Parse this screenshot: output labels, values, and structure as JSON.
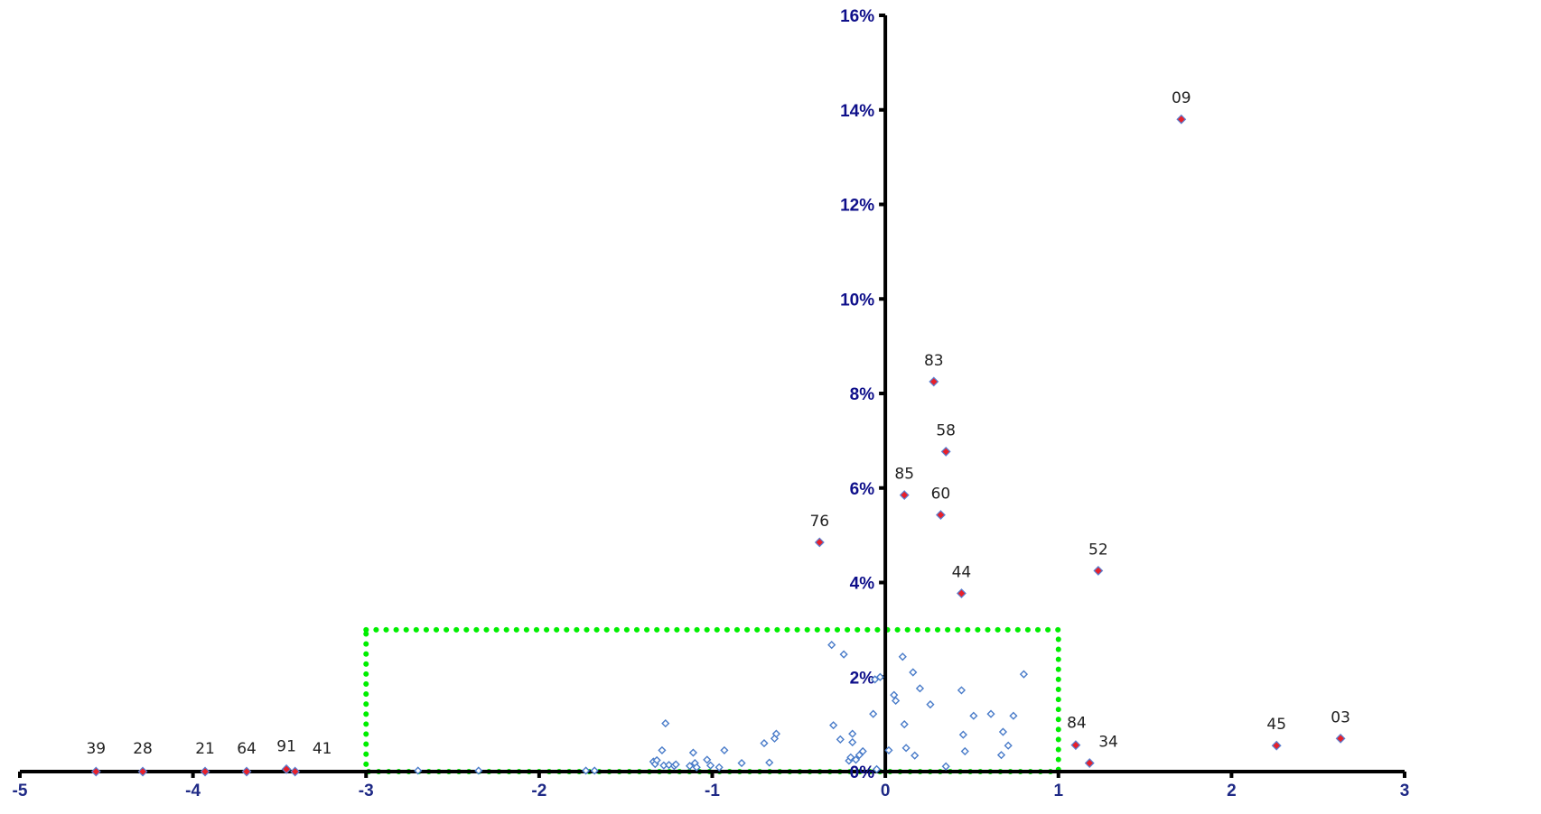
{
  "chart_data": {
    "type": "scatter",
    "xlim": [
      -5,
      3
    ],
    "ylim": [
      0,
      16
    ],
    "y_unit": "%",
    "x_ticks": [
      "-5",
      "-4",
      "-3",
      "-2",
      "-1",
      "0",
      "1",
      "2",
      "3"
    ],
    "y_ticks": [
      "0%",
      "2%",
      "4%",
      "6%",
      "8%",
      "10%",
      "12%",
      "14%",
      "16%"
    ],
    "grid": false,
    "highlight_box": {
      "x": [
        -3,
        1
      ],
      "y": [
        0,
        3
      ],
      "color": "#00ee00",
      "style": "dotted"
    },
    "colors": {
      "axis": "#000000",
      "tick_labels": "#1f2a86",
      "labeled_marker": "#e8202a",
      "labeled_marker_edge": "#5b7fd0",
      "open_marker": "#4a7cc9"
    },
    "labeled_points": [
      {
        "label": "39",
        "x": -4.56,
        "y": 0.0
      },
      {
        "label": "28",
        "x": -4.29,
        "y": 0.0
      },
      {
        "label": "21",
        "x": -3.93,
        "y": 0.0
      },
      {
        "label": "64",
        "x": -3.69,
        "y": 0.0
      },
      {
        "label": "91",
        "x": -3.46,
        "y": 0.05
      },
      {
        "label": "41",
        "x": -3.41,
        "y": 0.0
      },
      {
        "label": "76",
        "x": -0.38,
        "y": 4.85
      },
      {
        "label": "85",
        "x": 0.11,
        "y": 5.85
      },
      {
        "label": "83",
        "x": 0.28,
        "y": 8.25
      },
      {
        "label": "60",
        "x": 0.32,
        "y": 5.43
      },
      {
        "label": "58",
        "x": 0.35,
        "y": 6.77
      },
      {
        "label": "44",
        "x": 0.44,
        "y": 3.77
      },
      {
        "label": "09",
        "x": 1.71,
        "y": 13.8
      },
      {
        "label": "52",
        "x": 1.23,
        "y": 4.25
      },
      {
        "label": "84",
        "x": 1.1,
        "y": 0.56
      },
      {
        "label": "34",
        "x": 1.18,
        "y": 0.18
      },
      {
        "label": "45",
        "x": 2.26,
        "y": 0.55
      },
      {
        "label": "03",
        "x": 2.63,
        "y": 0.7
      }
    ],
    "points": [
      {
        "x": -2.7,
        "y": 0.02
      },
      {
        "x": -2.35,
        "y": 0.02
      },
      {
        "x": -1.73,
        "y": 0.02
      },
      {
        "x": -1.68,
        "y": 0.02
      },
      {
        "x": -1.34,
        "y": 0.21
      },
      {
        "x": -1.33,
        "y": 0.16
      },
      {
        "x": -1.32,
        "y": 0.24
      },
      {
        "x": -1.29,
        "y": 0.45
      },
      {
        "x": -1.27,
        "y": 1.02
      },
      {
        "x": -1.28,
        "y": 0.13
      },
      {
        "x": -1.25,
        "y": 0.14
      },
      {
        "x": -1.22,
        "y": 0.12
      },
      {
        "x": -1.21,
        "y": 0.15
      },
      {
        "x": -1.13,
        "y": 0.12
      },
      {
        "x": -1.11,
        "y": 0.4
      },
      {
        "x": -1.1,
        "y": 0.18
      },
      {
        "x": -1.09,
        "y": 0.09
      },
      {
        "x": -1.03,
        "y": 0.25
      },
      {
        "x": -1.01,
        "y": 0.13
      },
      {
        "x": -0.96,
        "y": 0.09
      },
      {
        "x": -0.93,
        "y": 0.45
      },
      {
        "x": -0.83,
        "y": 0.18
      },
      {
        "x": -0.7,
        "y": 0.6
      },
      {
        "x": -0.67,
        "y": 0.19
      },
      {
        "x": -0.64,
        "y": 0.7
      },
      {
        "x": -0.63,
        "y": 0.8
      },
      {
        "x": -0.31,
        "y": 2.68
      },
      {
        "x": -0.3,
        "y": 0.98
      },
      {
        "x": -0.26,
        "y": 0.68
      },
      {
        "x": -0.24,
        "y": 2.48
      },
      {
        "x": -0.21,
        "y": 0.23
      },
      {
        "x": -0.2,
        "y": 0.3
      },
      {
        "x": -0.19,
        "y": 0.8
      },
      {
        "x": -0.19,
        "y": 0.62
      },
      {
        "x": -0.17,
        "y": 0.25
      },
      {
        "x": -0.15,
        "y": 0.35
      },
      {
        "x": -0.13,
        "y": 0.43
      },
      {
        "x": -0.07,
        "y": 1.22
      },
      {
        "x": -0.06,
        "y": 1.95
      },
      {
        "x": -0.05,
        "y": 0.05
      },
      {
        "x": -0.03,
        "y": 2.0
      },
      {
        "x": 0.02,
        "y": 0.45
      },
      {
        "x": 0.05,
        "y": 1.62
      },
      {
        "x": 0.06,
        "y": 1.5
      },
      {
        "x": 0.1,
        "y": 2.43
      },
      {
        "x": 0.11,
        "y": 1.0
      },
      {
        "x": 0.12,
        "y": 0.5
      },
      {
        "x": 0.16,
        "y": 2.1
      },
      {
        "x": 0.17,
        "y": 0.34
      },
      {
        "x": 0.2,
        "y": 1.76
      },
      {
        "x": 0.26,
        "y": 1.42
      },
      {
        "x": 0.35,
        "y": 0.11
      },
      {
        "x": 0.44,
        "y": 1.72
      },
      {
        "x": 0.45,
        "y": 0.78
      },
      {
        "x": 0.46,
        "y": 0.43
      },
      {
        "x": 0.51,
        "y": 1.18
      },
      {
        "x": 0.61,
        "y": 1.22
      },
      {
        "x": 0.67,
        "y": 0.35
      },
      {
        "x": 0.68,
        "y": 0.84
      },
      {
        "x": 0.71,
        "y": 0.55
      },
      {
        "x": 0.74,
        "y": 1.18
      },
      {
        "x": 0.8,
        "y": 2.06
      }
    ]
  }
}
